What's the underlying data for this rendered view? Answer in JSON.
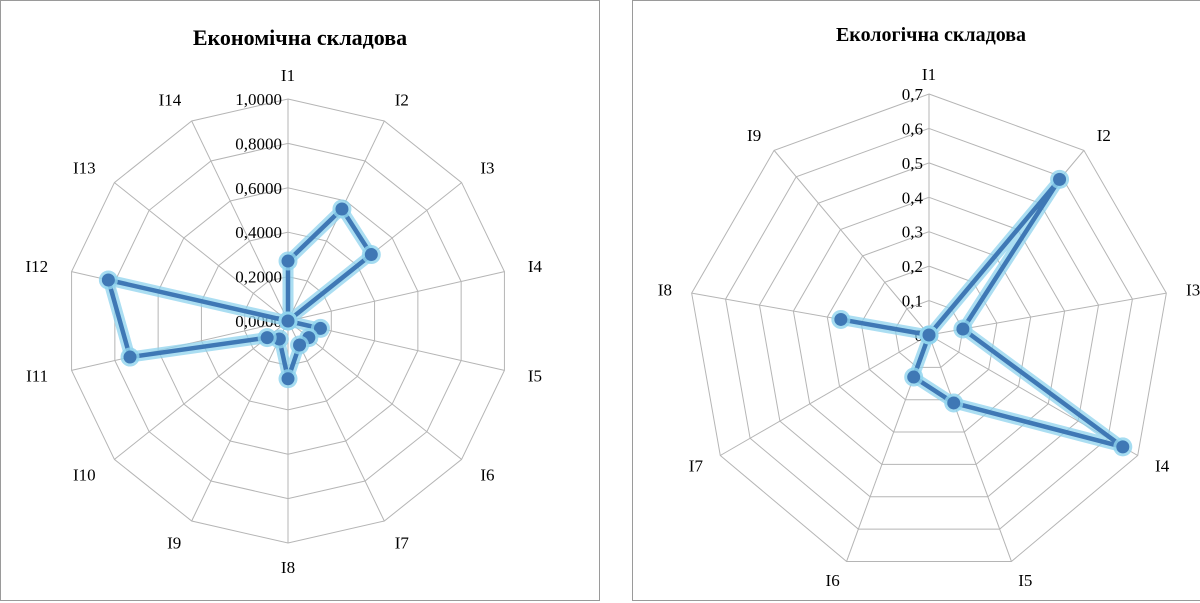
{
  "chart_data": [
    {
      "type": "radar",
      "title": "Економічна складова",
      "categories": [
        "I1",
        "I2",
        "I3",
        "I4",
        "I5",
        "I6",
        "I7",
        "I8",
        "I9",
        "I10",
        "I11",
        "I12",
        "I13",
        "I14"
      ],
      "series": [
        {
          "values": [
            0.27,
            0.56,
            0.48,
            0.0,
            0.15,
            0.12,
            0.12,
            0.26,
            0.09,
            0.12,
            0.73,
            0.83,
            0.0,
            0.0
          ]
        }
      ],
      "rlim": [
        0,
        1
      ],
      "ticks": [
        "0,0000",
        "0,2000",
        "0,4000",
        "0,6000",
        "0,8000",
        "1,0000"
      ],
      "grid": true,
      "line_color": "#3f78b5",
      "glow_color": "#8fd3ee"
    },
    {
      "type": "radar",
      "title": "Екологічна складова",
      "categories": [
        "I1",
        "I2",
        "I3",
        "I4",
        "I5",
        "I6",
        "I7",
        "I8",
        "I9"
      ],
      "series": [
        {
          "values": [
            0.0,
            0.59,
            0.1,
            0.65,
            0.21,
            0.13,
            0.0,
            0.26,
            0.0
          ]
        }
      ],
      "rlim": [
        0,
        0.7
      ],
      "ticks": [
        "0",
        "0,1",
        "0,2",
        "0,3",
        "0,4",
        "0,5",
        "0,6",
        "0,7"
      ],
      "grid": true,
      "line_color": "#3f78b5",
      "glow_color": "#8fd3ee"
    }
  ]
}
